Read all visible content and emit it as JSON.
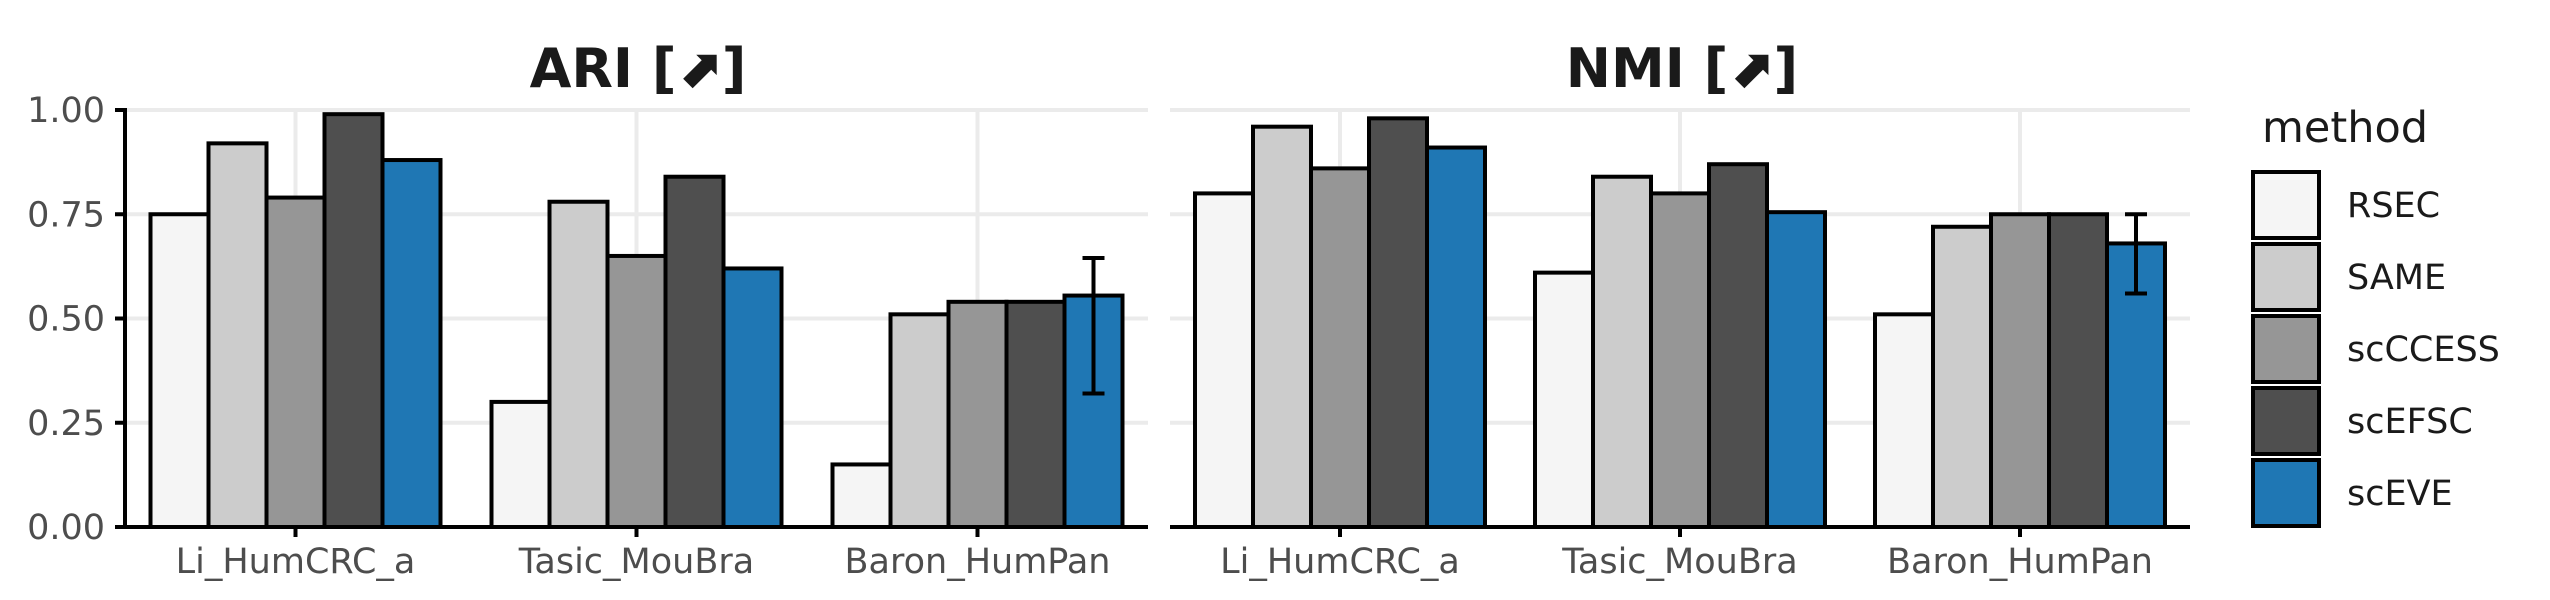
{
  "chart_data": {
    "type": "bar",
    "legend": {
      "title": "method",
      "position": "right",
      "entries": [
        {
          "name": "RSEC",
          "color": "#f5f5f5"
        },
        {
          "name": "SAME",
          "color": "#cccccc"
        },
        {
          "name": "scCCESS",
          "color": "#969696"
        },
        {
          "name": "scEFSC",
          "color": "#4f4f4f"
        },
        {
          "name": "scEVE",
          "color": "#1f77b4"
        }
      ]
    },
    "panels": [
      {
        "title": "ARI [⬈]",
        "ylim": [
          0,
          1
        ],
        "yticks": [
          "0.00",
          "0.25",
          "0.50",
          "0.75",
          "1.00"
        ],
        "categories": [
          "Li_HumCRC_a",
          "Tasic_MouBra",
          "Baron_HumPan"
        ],
        "series": [
          {
            "name": "RSEC",
            "values": [
              0.75,
              0.3,
              0.15
            ]
          },
          {
            "name": "SAME",
            "values": [
              0.92,
              0.78,
              0.51
            ]
          },
          {
            "name": "scCCESS",
            "values": [
              0.79,
              0.65,
              0.54
            ]
          },
          {
            "name": "scEFSC",
            "values": [
              0.99,
              0.84,
              0.54
            ]
          },
          {
            "name": "scEVE",
            "values": [
              0.88,
              0.62,
              0.555
            ]
          }
        ],
        "error_bars": [
          {
            "series": "scEVE",
            "category": "Baron_HumPan",
            "low": 0.32,
            "high": 0.645
          }
        ]
      },
      {
        "title": "NMI [⬈]",
        "ylim": [
          0,
          1
        ],
        "yticks": [
          "0.00",
          "0.25",
          "0.50",
          "0.75",
          "1.00"
        ],
        "categories": [
          "Li_HumCRC_a",
          "Tasic_MouBra",
          "Baron_HumPan"
        ],
        "series": [
          {
            "name": "RSEC",
            "values": [
              0.8,
              0.61,
              0.51
            ]
          },
          {
            "name": "SAME",
            "values": [
              0.96,
              0.84,
              0.72
            ]
          },
          {
            "name": "scCCESS",
            "values": [
              0.86,
              0.8,
              0.75
            ]
          },
          {
            "name": "scEFSC",
            "values": [
              0.98,
              0.87,
              0.75
            ]
          },
          {
            "name": "scEVE",
            "values": [
              0.91,
              0.755,
              0.68
            ]
          }
        ],
        "error_bars": [
          {
            "series": "scEVE",
            "category": "Baron_HumPan",
            "low": 0.56,
            "high": 0.75
          }
        ]
      }
    ]
  }
}
